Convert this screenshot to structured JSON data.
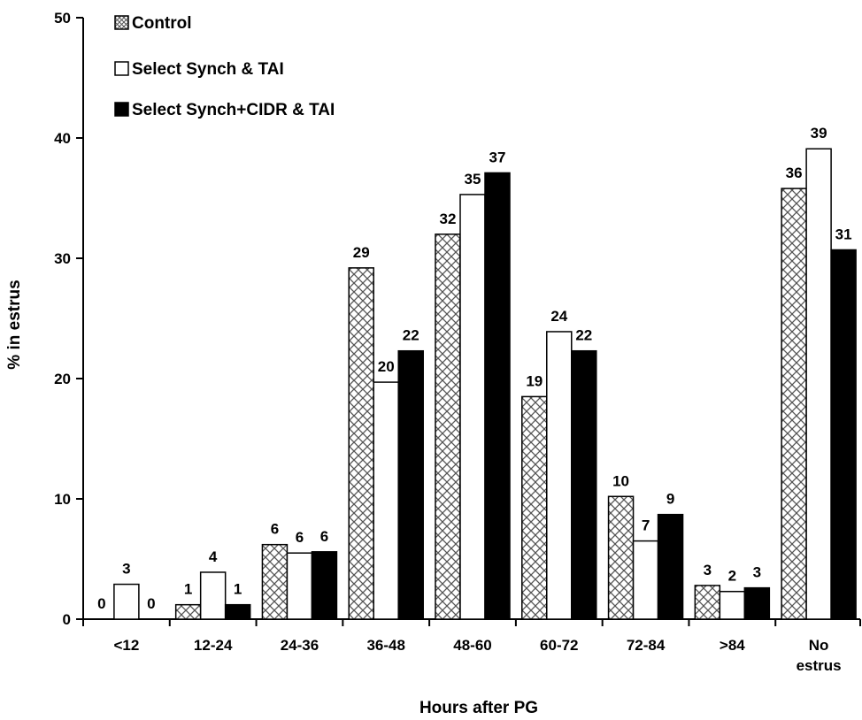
{
  "chart_data": {
    "type": "bar",
    "categories": [
      "<12",
      "12-24",
      "24-36",
      "36-48",
      "48-60",
      "60-72",
      "72-84",
      ">84",
      "No estrus"
    ],
    "series": [
      {
        "name": "Control",
        "values": [
          0,
          1.2,
          6.2,
          29.2,
          32.0,
          18.5,
          10.2,
          2.8,
          35.8
        ],
        "labels": [
          "0",
          "1",
          "6",
          "29",
          "32",
          "19",
          "10",
          "3",
          "36"
        ]
      },
      {
        "name": "Select Synch & TAI",
        "values": [
          2.9,
          3.9,
          5.5,
          19.7,
          35.3,
          23.9,
          6.5,
          2.3,
          39.1
        ],
        "labels": [
          "3",
          "4",
          "6",
          "20",
          "35",
          "24",
          "7",
          "2",
          "39"
        ]
      },
      {
        "name": "Select Synch+CIDR & TAI",
        "values": [
          0,
          1.2,
          5.6,
          22.3,
          37.1,
          22.3,
          8.7,
          2.6,
          30.7
        ],
        "labels": [
          "0",
          "1",
          "6",
          "22",
          "37",
          "22",
          "9",
          "3",
          "31"
        ]
      }
    ],
    "title": "",
    "xlabel": "Hours after PG",
    "ylabel": "% in estrus",
    "ylim": [
      0,
      50
    ],
    "yticks": [
      0,
      10,
      20,
      30,
      40,
      50
    ],
    "grid": false,
    "legend": "top-left",
    "series_fills": [
      "pattern-crosshatch",
      "#ffffff",
      "#000000"
    ]
  }
}
